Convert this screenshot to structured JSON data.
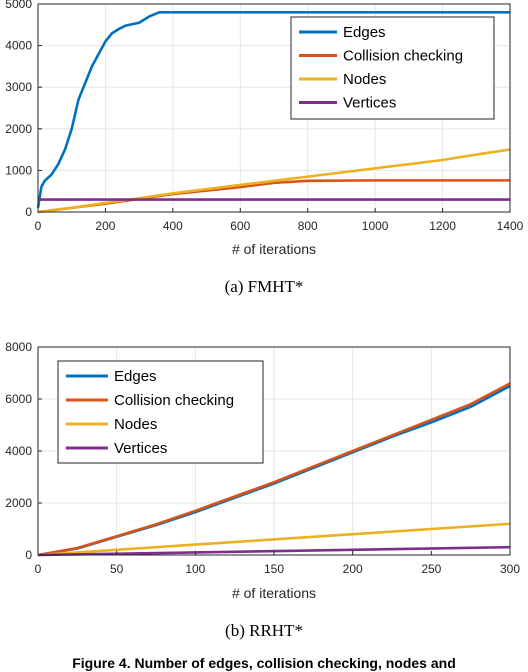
{
  "chart_data": [
    {
      "type": "line",
      "caption": "(a)  FMHT*",
      "title": "",
      "xlabel": "# of iterations",
      "ylabel": "",
      "xlim": [
        0,
        1400
      ],
      "ylim": [
        0,
        5000
      ],
      "xticks": [
        0,
        200,
        400,
        600,
        800,
        1000,
        1200,
        1400
      ],
      "yticks": [
        0,
        1000,
        2000,
        3000,
        4000,
        5000
      ],
      "grid": true,
      "legend_position": "top-right",
      "series": [
        {
          "name": "Edges",
          "color": "#0072bd",
          "points": [
            [
              0,
              100
            ],
            [
              10,
              600
            ],
            [
              20,
              750
            ],
            [
              40,
              900
            ],
            [
              60,
              1150
            ],
            [
              80,
              1500
            ],
            [
              100,
              2000
            ],
            [
              120,
              2700
            ],
            [
              140,
              3100
            ],
            [
              160,
              3500
            ],
            [
              180,
              3800
            ],
            [
              200,
              4100
            ],
            [
              220,
              4300
            ],
            [
              240,
              4400
            ],
            [
              260,
              4480
            ],
            [
              300,
              4550
            ],
            [
              330,
              4700
            ],
            [
              360,
              4800
            ],
            [
              1400,
              4800
            ]
          ]
        },
        {
          "name": "Collision checking",
          "color": "#d95319",
          "points": [
            [
              0,
              0
            ],
            [
              200,
              200
            ],
            [
              400,
              430
            ],
            [
              600,
              600
            ],
            [
              700,
              700
            ],
            [
              800,
              750
            ],
            [
              1000,
              760
            ],
            [
              1400,
              760
            ]
          ]
        },
        {
          "name": "Nodes",
          "color": "#edb120",
          "points": [
            [
              0,
              0
            ],
            [
              100,
              100
            ],
            [
              200,
              220
            ],
            [
              300,
              330
            ],
            [
              400,
              450
            ],
            [
              500,
              550
            ],
            [
              600,
              650
            ],
            [
              700,
              750
            ],
            [
              800,
              850
            ],
            [
              900,
              950
            ],
            [
              1000,
              1050
            ],
            [
              1100,
              1150
            ],
            [
              1200,
              1250
            ],
            [
              1300,
              1380
            ],
            [
              1400,
              1500
            ]
          ]
        },
        {
          "name": "Vertices",
          "color": "#7e2f8e",
          "points": [
            [
              0,
              300
            ],
            [
              1400,
              300
            ]
          ]
        }
      ]
    },
    {
      "type": "line",
      "caption": "(b)  RRHT*",
      "title": "",
      "xlabel": "# of iterations",
      "ylabel": "",
      "xlim": [
        0,
        300
      ],
      "ylim": [
        0,
        8000
      ],
      "xticks": [
        0,
        50,
        100,
        150,
        200,
        250,
        300
      ],
      "yticks": [
        0,
        2000,
        4000,
        6000,
        8000
      ],
      "grid": true,
      "legend_position": "top-left",
      "series": [
        {
          "name": "Edges",
          "color": "#0072bd",
          "points": [
            [
              0,
              0
            ],
            [
              25,
              250
            ],
            [
              50,
              700
            ],
            [
              75,
              1150
            ],
            [
              100,
              1650
            ],
            [
              125,
              2200
            ],
            [
              150,
              2750
            ],
            [
              175,
              3350
            ],
            [
              200,
              3950
            ],
            [
              225,
              4550
            ],
            [
              250,
              5100
            ],
            [
              275,
              5700
            ],
            [
              300,
              6500
            ]
          ]
        },
        {
          "name": "Collision checking",
          "color": "#d95319",
          "points": [
            [
              0,
              0
            ],
            [
              25,
              270
            ],
            [
              50,
              720
            ],
            [
              75,
              1180
            ],
            [
              100,
              1700
            ],
            [
              125,
              2250
            ],
            [
              150,
              2800
            ],
            [
              175,
              3400
            ],
            [
              200,
              4000
            ],
            [
              225,
              4600
            ],
            [
              250,
              5200
            ],
            [
              275,
              5800
            ],
            [
              300,
              6600
            ]
          ]
        },
        {
          "name": "Nodes",
          "color": "#edb120",
          "points": [
            [
              0,
              0
            ],
            [
              100,
              400
            ],
            [
              200,
              800
            ],
            [
              300,
              1200
            ]
          ]
        },
        {
          "name": "Vertices",
          "color": "#7e2f8e",
          "points": [
            [
              0,
              0
            ],
            [
              100,
              100
            ],
            [
              200,
              200
            ],
            [
              300,
              300
            ]
          ]
        }
      ]
    }
  ],
  "footer_text": "Figure 4.  Number of edges, collision checking, nodes and"
}
